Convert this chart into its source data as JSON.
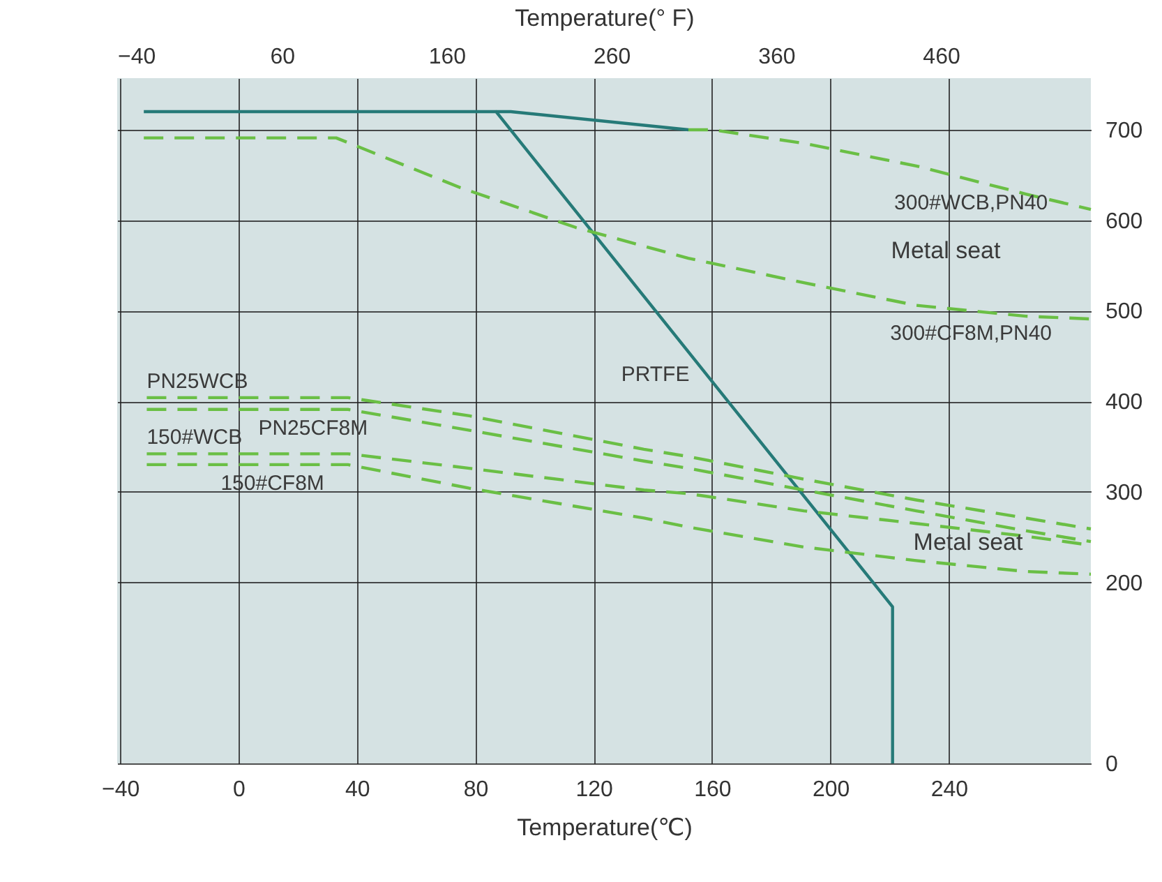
{
  "chart_data": {
    "type": "line",
    "xlabel": "Temperature(℃)",
    "x2label": "Temperature(° F)",
    "xlim": [
      -41,
      288
    ],
    "xticks": [
      -40,
      0,
      40,
      80,
      120,
      160,
      200,
      240
    ],
    "x2lim": [
      -40,
      551
    ],
    "x2ticks": [
      -40,
      60,
      160,
      260,
      360,
      460
    ],
    "ylim": [
      0,
      757
    ],
    "yticks": [
      0,
      200,
      300,
      400,
      500,
      600,
      700
    ],
    "grid": true,
    "series": [
      {
        "name": "PRTFE",
        "color": "#267a78",
        "line_style": "solid",
        "x": [
          -32,
          87,
          221,
          221
        ],
        "values": [
          720,
          720,
          173,
          0
        ]
      },
      {
        "color": "#267a78",
        "line_style": "solid",
        "x": [
          87,
          92,
          152
        ],
        "values": [
          720,
          720,
          700
        ]
      },
      {
        "name": "300#WCB,PN40",
        "color": "#6abf45",
        "line_style": "dashed",
        "x": [
          152,
          160,
          191,
          229,
          266,
          288
        ],
        "values": [
          700,
          700,
          685,
          660,
          629,
          612
        ]
      },
      {
        "name": "300#CF8M,PN40",
        "color": "#6abf45",
        "line_style": "dashed",
        "x": [
          -32,
          33,
          75,
          114,
          152,
          191,
          229,
          266,
          288
        ],
        "values": [
          691,
          691,
          636,
          592,
          558,
          531,
          506,
          494,
          491
        ]
      },
      {
        "name": "PN25WCB",
        "color": "#6abf45",
        "line_style": "dashed",
        "x": [
          -31,
          37,
          78,
          137,
          152,
          191,
          229,
          266,
          288
        ],
        "values": [
          404,
          404,
          384,
          347,
          339,
          314,
          291,
          271,
          259
        ]
      },
      {
        "name": "PN25CF8M",
        "color": "#6abf45",
        "line_style": "dashed",
        "x": [
          -31,
          37,
          78,
          137,
          152,
          191,
          229,
          266,
          288
        ],
        "values": [
          391,
          391,
          368,
          334,
          326,
          302,
          279,
          257,
          245
        ]
      },
      {
        "name": "150#WCB",
        "color": "#6abf45",
        "line_style": "dashed",
        "x": [
          -31,
          37,
          78,
          137,
          152,
          191,
          229,
          266,
          288
        ],
        "values": [
          342,
          342,
          326,
          302,
          298,
          279,
          265,
          251,
          241
        ]
      },
      {
        "name": "150#CF8M",
        "color": "#6abf45",
        "line_style": "dashed",
        "x": [
          -31,
          37,
          78,
          137,
          152,
          191,
          229,
          266,
          288
        ],
        "values": [
          330,
          330,
          304,
          271,
          261,
          239,
          224,
          212,
          209
        ]
      }
    ],
    "annotations": [
      "Metal seat",
      "Metal seat"
    ]
  }
}
